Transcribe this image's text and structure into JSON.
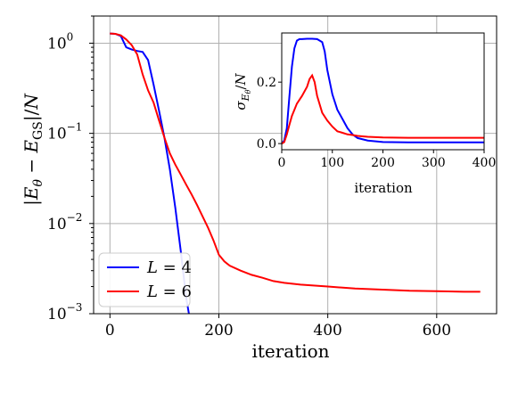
{
  "chart_data": [
    {
      "type": "line",
      "xlabel": "iteration",
      "ylabel": "|E_θ − E_GS|/N",
      "ylabel_parts": {
        "bar_open": "|",
        "E": "E",
        "theta": "θ",
        "minus": " − ",
        "E2": "E",
        "gs": "GS",
        "bar_close": "|/",
        "N": "N"
      },
      "yscale": "log",
      "xlim": [
        -30,
        710
      ],
      "ylim": [
        0.001,
        2.0
      ],
      "grid": true,
      "legend_position": "lower-left",
      "x_ticks": [
        "0",
        "200",
        "400",
        "600"
      ],
      "y_ticks": [
        {
          "base": "10",
          "exp": "0"
        },
        {
          "base": "10",
          "exp": "−1"
        },
        {
          "base": "10",
          "exp": "−2"
        },
        {
          "base": "10",
          "exp": "−3"
        }
      ],
      "series": [
        {
          "name": "L = 4",
          "label_var": "L",
          "label_rest": " = 4",
          "color": "#0000ff",
          "x": [
            0,
            10,
            20,
            30,
            40,
            50,
            60,
            70,
            80,
            90,
            100,
            110,
            120,
            130,
            140,
            145
          ],
          "y": [
            1.28,
            1.27,
            1.2,
            0.9,
            0.85,
            0.82,
            0.8,
            0.65,
            0.35,
            0.18,
            0.09,
            0.04,
            0.015,
            0.005,
            0.0015,
            0.001
          ]
        },
        {
          "name": "L = 6",
          "label_var": "L",
          "label_rest": " = 6",
          "color": "#ff0000",
          "x": [
            0,
            10,
            20,
            30,
            40,
            50,
            60,
            70,
            80,
            90,
            100,
            110,
            120,
            130,
            140,
            150,
            160,
            170,
            180,
            190,
            200,
            210,
            220,
            240,
            260,
            280,
            300,
            320,
            350,
            400,
            450,
            500,
            550,
            600,
            650,
            680
          ],
          "y": [
            1.28,
            1.27,
            1.22,
            1.1,
            0.95,
            0.75,
            0.45,
            0.3,
            0.22,
            0.14,
            0.09,
            0.06,
            0.045,
            0.035,
            0.027,
            0.021,
            0.016,
            0.012,
            0.009,
            0.0065,
            0.0045,
            0.0038,
            0.0034,
            0.003,
            0.0027,
            0.0025,
            0.0023,
            0.0022,
            0.0021,
            0.002,
            0.0019,
            0.00185,
            0.0018,
            0.00178,
            0.00175,
            0.00175
          ]
        }
      ]
    },
    {
      "type": "line",
      "xlabel": "iteration",
      "ylabel": "σ_{E_θ}/N",
      "ylabel_parts": {
        "sigma": "σ",
        "E": "E",
        "theta": "θ",
        "slash": "/",
        "N": "N"
      },
      "xlim": [
        0,
        400
      ],
      "ylim": [
        -0.02,
        0.36
      ],
      "grid": false,
      "x_ticks": [
        "0",
        "100",
        "200",
        "300",
        "400"
      ],
      "y_ticks": [
        "0.0",
        "0.2"
      ],
      "series": [
        {
          "color": "#0000ff",
          "x": [
            0,
            5,
            10,
            15,
            20,
            25,
            30,
            35,
            40,
            50,
            60,
            70,
            80,
            85,
            90,
            100,
            110,
            120,
            130,
            140,
            150,
            170,
            200,
            250,
            300,
            350,
            400
          ],
          "y": [
            0.0,
            0.01,
            0.05,
            0.15,
            0.25,
            0.31,
            0.335,
            0.34,
            0.34,
            0.341,
            0.341,
            0.34,
            0.33,
            0.3,
            0.24,
            0.16,
            0.11,
            0.08,
            0.05,
            0.03,
            0.018,
            0.01,
            0.005,
            0.004,
            0.004,
            0.004,
            0.004
          ]
        },
        {
          "color": "#ff0000",
          "x": [
            0,
            5,
            10,
            15,
            20,
            25,
            30,
            40,
            50,
            55,
            60,
            65,
            70,
            80,
            90,
            100,
            110,
            120,
            130,
            140,
            150,
            170,
            200,
            250,
            300,
            350,
            400
          ],
          "y": [
            0.0,
            0.005,
            0.03,
            0.06,
            0.09,
            0.11,
            0.13,
            0.155,
            0.185,
            0.21,
            0.222,
            0.2,
            0.155,
            0.1,
            0.075,
            0.055,
            0.04,
            0.035,
            0.03,
            0.028,
            0.025,
            0.022,
            0.02,
            0.019,
            0.019,
            0.019,
            0.019
          ]
        }
      ]
    }
  ]
}
